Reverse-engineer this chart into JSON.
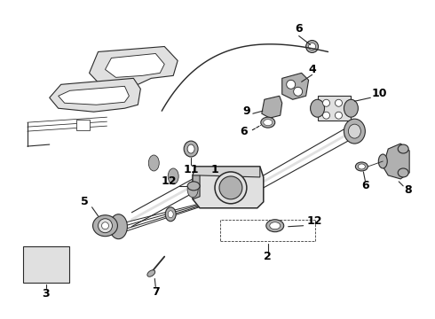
{
  "bg_color": "#ffffff",
  "lc": "#2a2a2a",
  "lw": 0.8,
  "figsize": [
    4.9,
    3.6
  ],
  "dpi": 100
}
